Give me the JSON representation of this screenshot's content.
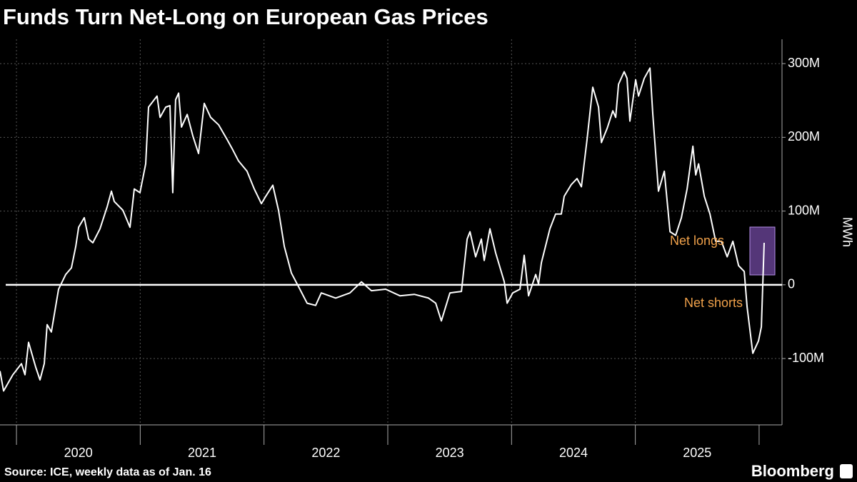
{
  "chart_data": {
    "type": "line",
    "title": "Funds Turn Net-Long on European Gas Prices",
    "source": "Source: ICE, weekly data as of Jan. 16",
    "brand": "Bloomberg",
    "y_axis_label": "MWh",
    "annotations": [
      "Net longs",
      "Net shorts"
    ],
    "annotation_color": "#f0a14a",
    "grid": true,
    "xlim": [
      2019.867,
      2026.185
    ],
    "xticks": [
      {
        "value": 2020,
        "label": "2020"
      },
      {
        "value": 2021,
        "label": "2021"
      },
      {
        "value": 2022,
        "label": "2022"
      },
      {
        "value": 2023,
        "label": "2023"
      },
      {
        "value": 2024,
        "label": "2024"
      },
      {
        "value": 2025,
        "label": "2025"
      }
    ],
    "ylim": [
      -190000000,
      333000000
    ],
    "yticks": [
      {
        "value": -100000000,
        "label": "-100M"
      },
      0,
      {
        "value": 100000000,
        "label": "100M"
      },
      {
        "value": 200000000,
        "label": "200M"
      },
      {
        "value": 300000000,
        "label": "300M"
      }
    ],
    "series": [
      {
        "name": "Net position",
        "color": "#ffffff",
        "x": [
          2019.867,
          2019.896,
          2019.971,
          2020.04,
          2020.069,
          2020.098,
          2020.156,
          2020.19,
          2020.225,
          2020.248,
          2020.282,
          2020.34,
          2020.398,
          2020.444,
          2020.479,
          2020.502,
          2020.548,
          2020.583,
          2020.617,
          2020.675,
          2020.733,
          2020.767,
          2020.79,
          2020.86,
          2020.917,
          2020.952,
          2020.998,
          2021.044,
          2021.067,
          2021.136,
          2021.16,
          2021.206,
          2021.24,
          2021.263,
          2021.286,
          2021.31,
          2021.333,
          2021.379,
          2021.425,
          2021.471,
          2021.517,
          2021.569,
          2021.633,
          2021.702,
          2021.748,
          2021.794,
          2021.863,
          2021.921,
          2021.979,
          2022.014,
          2022.071,
          2022.117,
          2022.164,
          2022.221,
          2022.29,
          2022.348,
          2022.417,
          2022.463,
          2022.579,
          2022.694,
          2022.787,
          2022.868,
          2022.983,
          2023.099,
          2023.214,
          2023.329,
          2023.387,
          2023.433,
          2023.502,
          2023.595,
          2023.641,
          2023.664,
          2023.71,
          2023.756,
          2023.779,
          2023.825,
          2023.872,
          2023.941,
          2023.964,
          2024.01,
          2024.068,
          2024.102,
          2024.137,
          2024.195,
          2024.218,
          2024.241,
          2024.31,
          2024.356,
          2024.402,
          2024.425,
          2024.483,
          2024.529,
          2024.564,
          2024.61,
          2024.656,
          2024.703,
          2024.726,
          2024.772,
          2024.818,
          2024.841,
          2024.864,
          2024.91,
          2024.933,
          2024.956,
          2025.003,
          2025.026,
          2025.072,
          2025.118,
          2025.141,
          2025.187,
          2025.234,
          2025.28,
          2025.326,
          2025.372,
          2025.418,
          2025.465,
          2025.488,
          2025.511,
          2025.557,
          2025.603,
          2025.649,
          2025.695,
          2025.742,
          2025.788,
          2025.834,
          2025.88,
          2025.903,
          2025.949,
          2025.995,
          2026.018,
          2026.041
        ],
        "values": [
          -117000000,
          -144000000,
          -122000000,
          -107000000,
          -122000000,
          -78000000,
          -112000000,
          -129000000,
          -107000000,
          -54000000,
          -64000000,
          -6000000,
          14000000,
          23000000,
          52000000,
          78000000,
          91000000,
          62000000,
          57000000,
          76000000,
          106000000,
          127000000,
          113000000,
          101000000,
          78000000,
          130000000,
          125000000,
          164000000,
          241000000,
          256000000,
          227000000,
          241000000,
          243000000,
          125000000,
          251000000,
          260000000,
          214000000,
          231000000,
          202000000,
          178000000,
          246000000,
          227000000,
          217000000,
          197000000,
          183000000,
          168000000,
          154000000,
          130000000,
          110000000,
          120000000,
          135000000,
          101000000,
          52000000,
          16000000,
          -6000000,
          -25000000,
          -28000000,
          -11000000,
          -18000000,
          -11000000,
          4000000,
          -8000000,
          -6000000,
          -15000000,
          -13000000,
          -18000000,
          -25000000,
          -49000000,
          -11000000,
          -9000000,
          62000000,
          72000000,
          38000000,
          62000000,
          33000000,
          76000000,
          43000000,
          4000000,
          -25000000,
          -11000000,
          -6000000,
          40000000,
          -15000000,
          14000000,
          1000000,
          30000000,
          76000000,
          96000000,
          96000000,
          120000000,
          136000000,
          144000000,
          133000000,
          197000000,
          268000000,
          241000000,
          193000000,
          212000000,
          236000000,
          227000000,
          272000000,
          289000000,
          280000000,
          222000000,
          278000000,
          256000000,
          280000000,
          294000000,
          231000000,
          127000000,
          154000000,
          72000000,
          67000000,
          91000000,
          130000000,
          188000000,
          149000000,
          164000000,
          120000000,
          96000000,
          59000000,
          59000000,
          38000000,
          59000000,
          26000000,
          18000000,
          -30000000,
          -93000000,
          -76000000,
          -57000000,
          57000000
        ]
      }
    ]
  }
}
